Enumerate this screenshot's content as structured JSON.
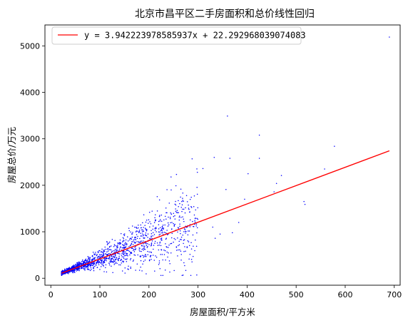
{
  "chart_data": {
    "type": "scatter",
    "title": "北京市昌平区二手房面积和总价线性回归",
    "xlabel": "房屋面积/平方米",
    "ylabel": "房屋总价/万元",
    "xlim": [
      -12,
      712
    ],
    "ylim": [
      -150,
      5450
    ],
    "xticks": [
      0,
      100,
      200,
      300,
      400,
      500,
      600,
      700
    ],
    "yticks": [
      0,
      1000,
      2000,
      3000,
      4000,
      5000
    ],
    "grid": false,
    "legend_position": "top-left",
    "scatter": {
      "color": "#0000ff",
      "bulk_range_x": [
        22,
        300
      ],
      "outliers": [
        {
          "x": 690,
          "y": 5190
        },
        {
          "x": 360,
          "y": 3490
        },
        {
          "x": 425,
          "y": 3080
        },
        {
          "x": 365,
          "y": 2580
        },
        {
          "x": 425,
          "y": 2580
        },
        {
          "x": 578,
          "y": 2840
        },
        {
          "x": 310,
          "y": 2360
        },
        {
          "x": 245,
          "y": 2180
        },
        {
          "x": 288,
          "y": 2570
        },
        {
          "x": 333,
          "y": 2600
        },
        {
          "x": 357,
          "y": 1910
        },
        {
          "x": 460,
          "y": 2040
        },
        {
          "x": 470,
          "y": 2210
        },
        {
          "x": 558,
          "y": 2350
        },
        {
          "x": 516,
          "y": 1650
        },
        {
          "x": 518,
          "y": 1590
        },
        {
          "x": 455,
          "y": 1860
        },
        {
          "x": 402,
          "y": 2250
        },
        {
          "x": 395,
          "y": 1700
        },
        {
          "x": 383,
          "y": 1200
        },
        {
          "x": 370,
          "y": 980
        },
        {
          "x": 345,
          "y": 950
        },
        {
          "x": 330,
          "y": 1100
        },
        {
          "x": 335,
          "y": 860
        },
        {
          "x": 290,
          "y": 470
        },
        {
          "x": 255,
          "y": 1990
        }
      ]
    },
    "regression": {
      "slope": 3.942223978585937,
      "intercept": 22.292968039074083,
      "x_range": [
        22,
        690
      ],
      "color": "#ff0000",
      "legend_label": "y = 3.942223978585937x + 22.292968039074083"
    }
  }
}
